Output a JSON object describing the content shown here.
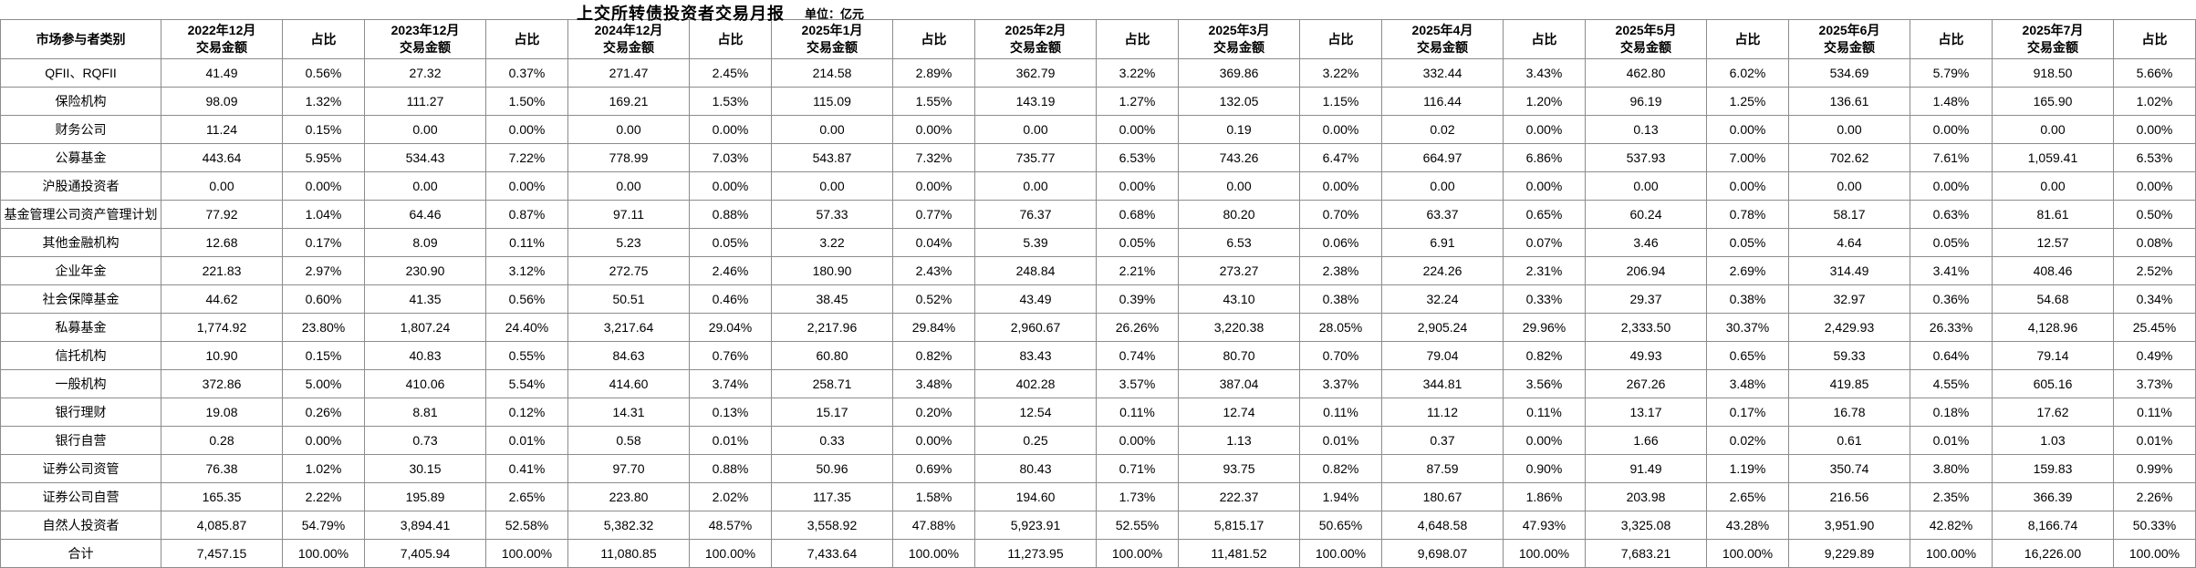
{
  "title": "上交所转债投资者交易月报",
  "unit_label": "单位：亿元",
  "table": {
    "category_header": "市场参与者类别",
    "amount_header": "交易金额",
    "pct_header": "占比",
    "border_color": "#8c8c8c",
    "background_color": "#ffffff",
    "text_color": "#000000",
    "periods": [
      "2022年12月",
      "2023年12月",
      "2024年12月",
      "2025年1月",
      "2025年2月",
      "2025年3月",
      "2025年4月",
      "2025年5月",
      "2025年6月",
      "2025年7月"
    ],
    "rows": [
      {
        "category": "QFII、RQFII",
        "values": [
          [
            "41.49",
            "0.56%"
          ],
          [
            "27.32",
            "0.37%"
          ],
          [
            "271.47",
            "2.45%"
          ],
          [
            "214.58",
            "2.89%"
          ],
          [
            "362.79",
            "3.22%"
          ],
          [
            "369.86",
            "3.22%"
          ],
          [
            "332.44",
            "3.43%"
          ],
          [
            "462.80",
            "6.02%"
          ],
          [
            "534.69",
            "5.79%"
          ],
          [
            "918.50",
            "5.66%"
          ]
        ]
      },
      {
        "category": "保险机构",
        "values": [
          [
            "98.09",
            "1.32%"
          ],
          [
            "111.27",
            "1.50%"
          ],
          [
            "169.21",
            "1.53%"
          ],
          [
            "115.09",
            "1.55%"
          ],
          [
            "143.19",
            "1.27%"
          ],
          [
            "132.05",
            "1.15%"
          ],
          [
            "116.44",
            "1.20%"
          ],
          [
            "96.19",
            "1.25%"
          ],
          [
            "136.61",
            "1.48%"
          ],
          [
            "165.90",
            "1.02%"
          ]
        ]
      },
      {
        "category": "财务公司",
        "values": [
          [
            "11.24",
            "0.15%"
          ],
          [
            "0.00",
            "0.00%"
          ],
          [
            "0.00",
            "0.00%"
          ],
          [
            "0.00",
            "0.00%"
          ],
          [
            "0.00",
            "0.00%"
          ],
          [
            "0.19",
            "0.00%"
          ],
          [
            "0.02",
            "0.00%"
          ],
          [
            "0.13",
            "0.00%"
          ],
          [
            "0.00",
            "0.00%"
          ],
          [
            "0.00",
            "0.00%"
          ]
        ]
      },
      {
        "category": "公募基金",
        "values": [
          [
            "443.64",
            "5.95%"
          ],
          [
            "534.43",
            "7.22%"
          ],
          [
            "778.99",
            "7.03%"
          ],
          [
            "543.87",
            "7.32%"
          ],
          [
            "735.77",
            "6.53%"
          ],
          [
            "743.26",
            "6.47%"
          ],
          [
            "664.97",
            "6.86%"
          ],
          [
            "537.93",
            "7.00%"
          ],
          [
            "702.62",
            "7.61%"
          ],
          [
            "1,059.41",
            "6.53%"
          ]
        ]
      },
      {
        "category": "沪股通投资者",
        "values": [
          [
            "0.00",
            "0.00%"
          ],
          [
            "0.00",
            "0.00%"
          ],
          [
            "0.00",
            "0.00%"
          ],
          [
            "0.00",
            "0.00%"
          ],
          [
            "0.00",
            "0.00%"
          ],
          [
            "0.00",
            "0.00%"
          ],
          [
            "0.00",
            "0.00%"
          ],
          [
            "0.00",
            "0.00%"
          ],
          [
            "0.00",
            "0.00%"
          ],
          [
            "0.00",
            "0.00%"
          ]
        ]
      },
      {
        "category": "基金管理公司资产管理计划",
        "values": [
          [
            "77.92",
            "1.04%"
          ],
          [
            "64.46",
            "0.87%"
          ],
          [
            "97.11",
            "0.88%"
          ],
          [
            "57.33",
            "0.77%"
          ],
          [
            "76.37",
            "0.68%"
          ],
          [
            "80.20",
            "0.70%"
          ],
          [
            "63.37",
            "0.65%"
          ],
          [
            "60.24",
            "0.78%"
          ],
          [
            "58.17",
            "0.63%"
          ],
          [
            "81.61",
            "0.50%"
          ]
        ]
      },
      {
        "category": "其他金融机构",
        "values": [
          [
            "12.68",
            "0.17%"
          ],
          [
            "8.09",
            "0.11%"
          ],
          [
            "5.23",
            "0.05%"
          ],
          [
            "3.22",
            "0.04%"
          ],
          [
            "5.39",
            "0.05%"
          ],
          [
            "6.53",
            "0.06%"
          ],
          [
            "6.91",
            "0.07%"
          ],
          [
            "3.46",
            "0.05%"
          ],
          [
            "4.64",
            "0.05%"
          ],
          [
            "12.57",
            "0.08%"
          ]
        ]
      },
      {
        "category": "企业年金",
        "values": [
          [
            "221.83",
            "2.97%"
          ],
          [
            "230.90",
            "3.12%"
          ],
          [
            "272.75",
            "2.46%"
          ],
          [
            "180.90",
            "2.43%"
          ],
          [
            "248.84",
            "2.21%"
          ],
          [
            "273.27",
            "2.38%"
          ],
          [
            "224.26",
            "2.31%"
          ],
          [
            "206.94",
            "2.69%"
          ],
          [
            "314.49",
            "3.41%"
          ],
          [
            "408.46",
            "2.52%"
          ]
        ]
      },
      {
        "category": "社会保障基金",
        "values": [
          [
            "44.62",
            "0.60%"
          ],
          [
            "41.35",
            "0.56%"
          ],
          [
            "50.51",
            "0.46%"
          ],
          [
            "38.45",
            "0.52%"
          ],
          [
            "43.49",
            "0.39%"
          ],
          [
            "43.10",
            "0.38%"
          ],
          [
            "32.24",
            "0.33%"
          ],
          [
            "29.37",
            "0.38%"
          ],
          [
            "32.97",
            "0.36%"
          ],
          [
            "54.68",
            "0.34%"
          ]
        ]
      },
      {
        "category": "私募基金",
        "values": [
          [
            "1,774.92",
            "23.80%"
          ],
          [
            "1,807.24",
            "24.40%"
          ],
          [
            "3,217.64",
            "29.04%"
          ],
          [
            "2,217.96",
            "29.84%"
          ],
          [
            "2,960.67",
            "26.26%"
          ],
          [
            "3,220.38",
            "28.05%"
          ],
          [
            "2,905.24",
            "29.96%"
          ],
          [
            "2,333.50",
            "30.37%"
          ],
          [
            "2,429.93",
            "26.33%"
          ],
          [
            "4,128.96",
            "25.45%"
          ]
        ]
      },
      {
        "category": "信托机构",
        "values": [
          [
            "10.90",
            "0.15%"
          ],
          [
            "40.83",
            "0.55%"
          ],
          [
            "84.63",
            "0.76%"
          ],
          [
            "60.80",
            "0.82%"
          ],
          [
            "83.43",
            "0.74%"
          ],
          [
            "80.70",
            "0.70%"
          ],
          [
            "79.04",
            "0.82%"
          ],
          [
            "49.93",
            "0.65%"
          ],
          [
            "59.33",
            "0.64%"
          ],
          [
            "79.14",
            "0.49%"
          ]
        ]
      },
      {
        "category": "一般机构",
        "values": [
          [
            "372.86",
            "5.00%"
          ],
          [
            "410.06",
            "5.54%"
          ],
          [
            "414.60",
            "3.74%"
          ],
          [
            "258.71",
            "3.48%"
          ],
          [
            "402.28",
            "3.57%"
          ],
          [
            "387.04",
            "3.37%"
          ],
          [
            "344.81",
            "3.56%"
          ],
          [
            "267.26",
            "3.48%"
          ],
          [
            "419.85",
            "4.55%"
          ],
          [
            "605.16",
            "3.73%"
          ]
        ]
      },
      {
        "category": "银行理财",
        "values": [
          [
            "19.08",
            "0.26%"
          ],
          [
            "8.81",
            "0.12%"
          ],
          [
            "14.31",
            "0.13%"
          ],
          [
            "15.17",
            "0.20%"
          ],
          [
            "12.54",
            "0.11%"
          ],
          [
            "12.74",
            "0.11%"
          ],
          [
            "11.12",
            "0.11%"
          ],
          [
            "13.17",
            "0.17%"
          ],
          [
            "16.78",
            "0.18%"
          ],
          [
            "17.62",
            "0.11%"
          ]
        ]
      },
      {
        "category": "银行自营",
        "values": [
          [
            "0.28",
            "0.00%"
          ],
          [
            "0.73",
            "0.01%"
          ],
          [
            "0.58",
            "0.01%"
          ],
          [
            "0.33",
            "0.00%"
          ],
          [
            "0.25",
            "0.00%"
          ],
          [
            "1.13",
            "0.01%"
          ],
          [
            "0.37",
            "0.00%"
          ],
          [
            "1.66",
            "0.02%"
          ],
          [
            "0.61",
            "0.01%"
          ],
          [
            "1.03",
            "0.01%"
          ]
        ]
      },
      {
        "category": "证券公司资管",
        "values": [
          [
            "76.38",
            "1.02%"
          ],
          [
            "30.15",
            "0.41%"
          ],
          [
            "97.70",
            "0.88%"
          ],
          [
            "50.96",
            "0.69%"
          ],
          [
            "80.43",
            "0.71%"
          ],
          [
            "93.75",
            "0.82%"
          ],
          [
            "87.59",
            "0.90%"
          ],
          [
            "91.49",
            "1.19%"
          ],
          [
            "350.74",
            "3.80%"
          ],
          [
            "159.83",
            "0.99%"
          ]
        ]
      },
      {
        "category": "证券公司自营",
        "values": [
          [
            "165.35",
            "2.22%"
          ],
          [
            "195.89",
            "2.65%"
          ],
          [
            "223.80",
            "2.02%"
          ],
          [
            "117.35",
            "1.58%"
          ],
          [
            "194.60",
            "1.73%"
          ],
          [
            "222.37",
            "1.94%"
          ],
          [
            "180.67",
            "1.86%"
          ],
          [
            "203.98",
            "2.65%"
          ],
          [
            "216.56",
            "2.35%"
          ],
          [
            "366.39",
            "2.26%"
          ]
        ]
      },
      {
        "category": "自然人投资者",
        "values": [
          [
            "4,085.87",
            "54.79%"
          ],
          [
            "3,894.41",
            "52.58%"
          ],
          [
            "5,382.32",
            "48.57%"
          ],
          [
            "3,558.92",
            "47.88%"
          ],
          [
            "5,923.91",
            "52.55%"
          ],
          [
            "5,815.17",
            "50.65%"
          ],
          [
            "4,648.58",
            "47.93%"
          ],
          [
            "3,325.08",
            "43.28%"
          ],
          [
            "3,951.90",
            "42.82%"
          ],
          [
            "8,166.74",
            "50.33%"
          ]
        ]
      },
      {
        "category": "合计",
        "values": [
          [
            "7,457.15",
            "100.00%"
          ],
          [
            "7,405.94",
            "100.00%"
          ],
          [
            "11,080.85",
            "100.00%"
          ],
          [
            "7,433.64",
            "100.00%"
          ],
          [
            "11,273.95",
            "100.00%"
          ],
          [
            "11,481.52",
            "100.00%"
          ],
          [
            "9,698.07",
            "100.00%"
          ],
          [
            "7,683.21",
            "100.00%"
          ],
          [
            "9,229.89",
            "100.00%"
          ],
          [
            "16,226.00",
            "100.00%"
          ]
        ]
      }
    ]
  }
}
